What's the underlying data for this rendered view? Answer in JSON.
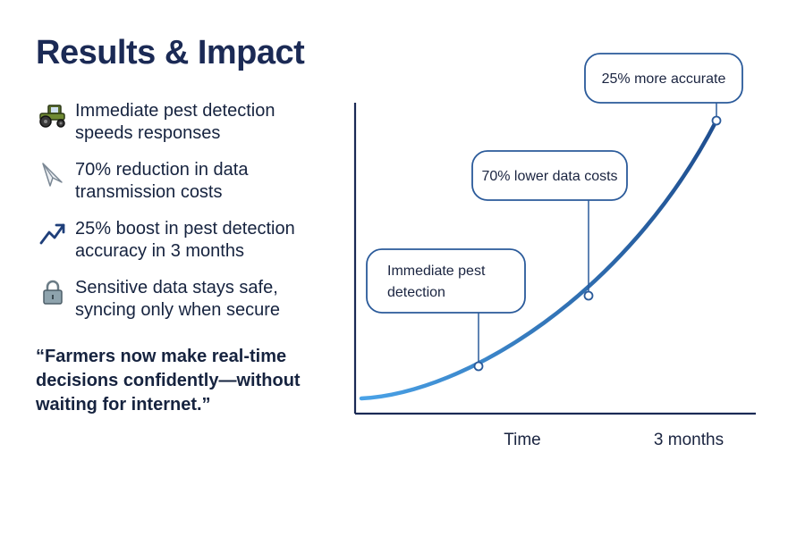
{
  "title": "Results & Impact",
  "bullets": [
    {
      "icon": "tractor-icon",
      "line1": "Immediate pest detection",
      "line2": "speeds responses"
    },
    {
      "icon": "paper-plane-icon",
      "line1": "70% reduction in data",
      "line2": "transmission costs"
    },
    {
      "icon": "trend-up-arrow-icon",
      "line1": "25% boost in pest detection",
      "line2": "accuracy in 3 months"
    },
    {
      "icon": "padlock-icon",
      "line1": "Sensitive data stays safe,",
      "line2": "syncing only when secure"
    }
  ],
  "quote": {
    "line1": "“Farmers now make real-time",
    "line2": "decisions confidently—without",
    "line3": "waiting for internet.”"
  },
  "chart_data": {
    "type": "line",
    "xlabel": "Time",
    "x_end_label": "3 months",
    "curve": "exponential-growth",
    "milestones": [
      {
        "label_lines": [
          "Immediate pest",
          "detection"
        ]
      },
      {
        "label_lines": [
          "70% lower data costs"
        ]
      },
      {
        "label_lines": [
          "25% more accurate"
        ]
      }
    ],
    "colors": {
      "axis": "#1b2a55",
      "curve_start": "#4aa3e8",
      "curve_end": "#1f4e8f",
      "callout_border": "#2a5a9a"
    }
  }
}
